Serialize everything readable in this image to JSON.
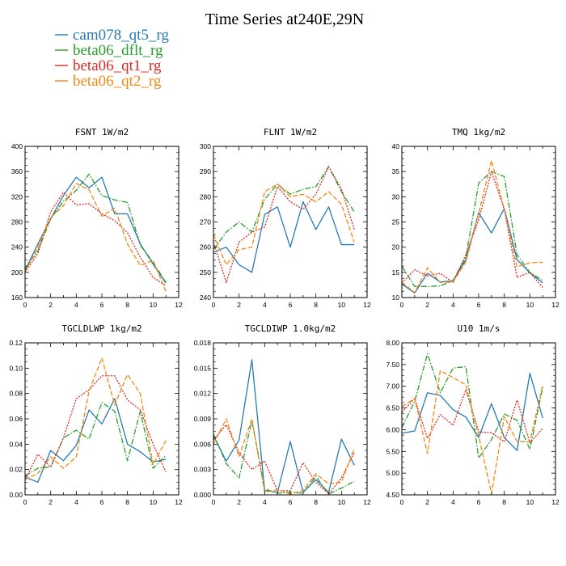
{
  "title": "Time Series at240E,29N",
  "legend": [
    {
      "name": "cam078_qt5_rg",
      "color": "#2b79b0",
      "dash": "solid"
    },
    {
      "name": "beta06_dflt_rg",
      "color": "#2d9b32",
      "dash": "dashdot"
    },
    {
      "name": "beta06_qt1_rg",
      "color": "#dd2a25",
      "dash": "dotted"
    },
    {
      "name": "beta06_qt2_rg",
      "color": "#f08a1c",
      "dash": "dashed"
    }
  ],
  "chart_data": [
    {
      "type": "line",
      "title": "FSNT   1W/m2",
      "x": [
        0,
        1,
        2,
        3,
        4,
        5,
        6,
        7,
        8,
        9,
        10,
        11
      ],
      "xlim": [
        0,
        12
      ],
      "ylim": [
        160,
        400
      ],
      "xticks": [
        "0",
        "2",
        "4",
        "6",
        "8",
        "10",
        "12"
      ],
      "yticks": [
        "160",
        "200",
        "240",
        "280",
        "320",
        "360",
        "400"
      ],
      "series": [
        {
          "name": "cam078_qt5_rg",
          "values": [
            203,
            245,
            285,
            322,
            351,
            334,
            351,
            293,
            293,
            245,
            213,
            183
          ]
        },
        {
          "name": "beta06_dflt_rg",
          "values": [
            206,
            234,
            285,
            313,
            330,
            356,
            322,
            315,
            311,
            243,
            216,
            184
          ]
        },
        {
          "name": "beta06_qt1_rg",
          "values": [
            200,
            230,
            296,
            327,
            307,
            309,
            293,
            282,
            263,
            224,
            192,
            179
          ]
        },
        {
          "name": "beta06_qt2_rg",
          "values": [
            200,
            240,
            287,
            306,
            341,
            331,
            289,
            302,
            245,
            211,
            219,
            170
          ]
        }
      ]
    },
    {
      "type": "line",
      "title": "FLNT   1W/m2",
      "x": [
        0,
        1,
        2,
        3,
        4,
        5,
        6,
        7,
        8,
        9,
        10,
        11
      ],
      "xlim": [
        0,
        12
      ],
      "ylim": [
        240,
        300
      ],
      "xticks": [
        "0",
        "2",
        "4",
        "6",
        "8",
        "10",
        "12"
      ],
      "yticks": [
        "240",
        "250",
        "260",
        "270",
        "280",
        "290",
        "300"
      ],
      "series": [
        {
          "name": "cam078_qt5_rg",
          "values": [
            258,
            260,
            253,
            250,
            273,
            276,
            260,
            278,
            267,
            276,
            261,
            261
          ]
        },
        {
          "name": "beta06_dflt_rg",
          "values": [
            259,
            266,
            270,
            266,
            279,
            285,
            281,
            283,
            284,
            292,
            282,
            274
          ]
        },
        {
          "name": "beta06_qt1_rg",
          "values": [
            262,
            246,
            262,
            266,
            268,
            284,
            278,
            275,
            281,
            292,
            283,
            267
          ]
        },
        {
          "name": "beta06_qt2_rg",
          "values": [
            265,
            253,
            259,
            260,
            282,
            285,
            280,
            281,
            278,
            282,
            277,
            262
          ]
        }
      ]
    },
    {
      "type": "line",
      "title": "TMQ   1kg/m2",
      "x": [
        0,
        1,
        2,
        3,
        4,
        5,
        6,
        7,
        8,
        9,
        10,
        11
      ],
      "xlim": [
        0,
        12
      ],
      "ylim": [
        10,
        40
      ],
      "xticks": [
        "0",
        "2",
        "4",
        "6",
        "8",
        "10",
        "12"
      ],
      "yticks": [
        "10",
        "15",
        "20",
        "25",
        "30",
        "35",
        "40"
      ],
      "series": [
        {
          "name": "cam078_qt5_rg",
          "values": [
            12.7,
            10.9,
            14.8,
            13.1,
            13.3,
            17.5,
            26.8,
            22.8,
            27.7,
            17.5,
            14.9,
            12.9
          ]
        },
        {
          "name": "beta06_dflt_rg",
          "values": [
            16.2,
            12.2,
            12.2,
            12.3,
            13.4,
            18.0,
            32.7,
            35.0,
            34.0,
            18.5,
            15.0,
            13.4
          ]
        },
        {
          "name": "beta06_qt1_rg",
          "values": [
            12.9,
            15.5,
            14.3,
            14.8,
            13.0,
            18.5,
            25.4,
            35.0,
            27.5,
            14.0,
            15.0,
            12.0
          ]
        },
        {
          "name": "beta06_qt2_rg",
          "values": [
            13.0,
            11.0,
            15.9,
            13.0,
            13.1,
            17.1,
            26.7,
            37.2,
            27.5,
            16.1,
            16.9,
            17.0
          ]
        }
      ]
    },
    {
      "type": "line",
      "title": "TGCLDLWP   1kg/m2",
      "x": [
        0,
        1,
        2,
        3,
        4,
        5,
        6,
        7,
        8,
        9,
        10,
        11
      ],
      "xlim": [
        0,
        12
      ],
      "ylim": [
        0,
        0.12
      ],
      "xticks": [
        "0",
        "2",
        "4",
        "6",
        "8",
        "10",
        "12"
      ],
      "yticks": [
        "0.00",
        "0.02",
        "0.04",
        "0.06",
        "0.08",
        "0.10",
        "0.12"
      ],
      "series": [
        {
          "name": "cam078_qt5_rg",
          "values": [
            0.014,
            0.01,
            0.035,
            0.027,
            0.039,
            0.067,
            0.056,
            0.076,
            0.04,
            0.034,
            0.026,
            0.028
          ]
        },
        {
          "name": "beta06_dflt_rg",
          "values": [
            0.015,
            0.021,
            0.022,
            0.045,
            0.051,
            0.044,
            0.073,
            0.066,
            0.027,
            0.066,
            0.021,
            0.031
          ]
        },
        {
          "name": "beta06_qt1_rg",
          "values": [
            0.012,
            0.032,
            0.022,
            0.045,
            0.076,
            0.083,
            0.094,
            0.094,
            0.075,
            0.067,
            0.04,
            0.018
          ]
        },
        {
          "name": "beta06_qt2_rg",
          "values": [
            0.012,
            0.017,
            0.03,
            0.021,
            0.03,
            0.082,
            0.108,
            0.071,
            0.095,
            0.08,
            0.024,
            0.043
          ]
        }
      ]
    },
    {
      "type": "line",
      "title": "TGCLDIWP   1.0kg/m2",
      "x": [
        0,
        1,
        2,
        3,
        4,
        5,
        6,
        7,
        8,
        9,
        10,
        11
      ],
      "xlim": [
        0,
        12
      ],
      "ylim": [
        0,
        0.018
      ],
      "xticks": [
        "0",
        "2",
        "4",
        "6",
        "8",
        "10",
        "12"
      ],
      "yticks": [
        "0.000",
        "0.003",
        "0.006",
        "0.009",
        "0.012",
        "0.015",
        "0.018"
      ],
      "series": [
        {
          "name": "cam078_qt5_rg",
          "values": [
            0.007,
            0.004,
            0.0065,
            0.016,
            0.0005,
            0.0003,
            0.0063,
            0.0003,
            0.0018,
            0.0003,
            0.0066,
            0.0035
          ]
        },
        {
          "name": "beta06_dflt_rg",
          "values": [
            0.0072,
            0.0037,
            0.002,
            0.0088,
            0.0007,
            0.0002,
            0.0003,
            0.0002,
            0.0022,
            0.0001,
            0.0008,
            0.0016
          ]
        },
        {
          "name": "beta06_qt1_rg",
          "values": [
            0.0065,
            0.0083,
            0.005,
            0.003,
            0.004,
            0.0005,
            0.0005,
            0.0038,
            0.0015,
            0.0001,
            0.002,
            0.005
          ]
        },
        {
          "name": "beta06_qt2_rg",
          "values": [
            0.006,
            0.009,
            0.0045,
            0.009,
            0.0003,
            0.0006,
            0.0001,
            0.0005,
            0.0025,
            0.0013,
            0.0015,
            0.0055
          ]
        }
      ]
    },
    {
      "type": "line",
      "title": "U10   1m/s",
      "x": [
        0,
        1,
        2,
        3,
        4,
        5,
        6,
        7,
        8,
        9,
        10,
        11
      ],
      "xlim": [
        0,
        12
      ],
      "ylim": [
        4.5,
        8.0
      ],
      "xticks": [
        "0",
        "2",
        "4",
        "6",
        "8",
        "10",
        "12"
      ],
      "yticks": [
        "4.50",
        "5.00",
        "5.50",
        "6.00",
        "6.50",
        "7.00",
        "7.50",
        "8.00"
      ],
      "series": [
        {
          "name": "cam078_qt5_rg",
          "values": [
            5.92,
            5.97,
            6.85,
            6.79,
            6.46,
            6.29,
            5.82,
            6.6,
            5.82,
            5.52,
            7.3,
            6.27
          ]
        },
        {
          "name": "beta06_dflt_rg",
          "values": [
            6.05,
            6.65,
            7.75,
            6.85,
            7.42,
            7.45,
            5.35,
            5.77,
            6.36,
            6.22,
            5.55,
            6.98
          ]
        },
        {
          "name": "beta06_qt1_rg",
          "values": [
            6.4,
            6.72,
            5.8,
            6.35,
            6.1,
            6.92,
            5.95,
            5.93,
            5.72,
            6.68,
            5.7,
            6.03
          ]
        },
        {
          "name": "beta06_qt2_rg",
          "values": [
            6.53,
            6.72,
            5.45,
            7.36,
            7.2,
            7.03,
            5.86,
            4.53,
            6.3,
            5.73,
            5.72,
            7.03
          ]
        }
      ]
    }
  ]
}
